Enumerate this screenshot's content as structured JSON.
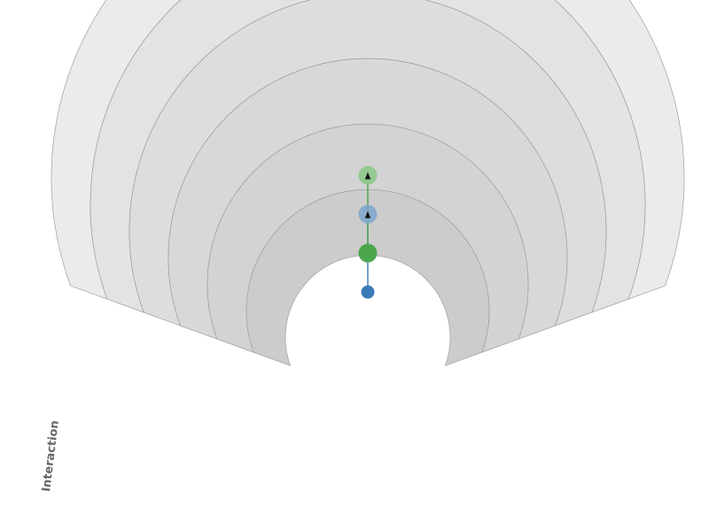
{
  "diagram": {
    "type": "radial-ring-progression",
    "axis_label": "Interaction",
    "ring_count": 6,
    "ring_colors": [
      "#cccccc",
      "#d3d3d3",
      "#d8d8d8",
      "#dddddd",
      "#e3e3e3",
      "#ebebeb"
    ],
    "ring_stroke": "#9e9e9e",
    "nodes": [
      {
        "id": "blue-start",
        "ring": 0.5,
        "color": "#3a7ab8",
        "opacity": 1.0,
        "size": "small"
      },
      {
        "id": "green-start",
        "ring": 1.5,
        "color": "#4ca64c",
        "opacity": 1.0,
        "size": "medium"
      },
      {
        "id": "blue-end",
        "ring": 2.5,
        "color": "#7ca4cc",
        "opacity": 0.85,
        "size": "medium"
      },
      {
        "id": "green-end",
        "ring": 3.5,
        "color": "#8cc88c",
        "opacity": 0.9,
        "size": "medium"
      }
    ],
    "links": [
      {
        "from": "blue-start",
        "to": "blue-end",
        "color": "#3a7ab8"
      },
      {
        "from": "green-start",
        "to": "green-end",
        "color": "#4ca64c"
      }
    ]
  }
}
